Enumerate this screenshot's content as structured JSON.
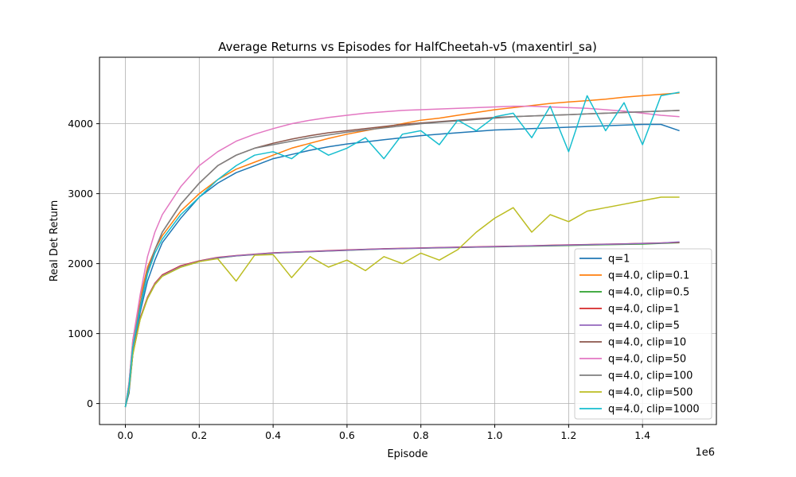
{
  "chart_data": {
    "type": "line",
    "title": "Average Returns vs Episodes for HalfCheetah-v5 (maxentirl_sa)",
    "xlabel": "Episode",
    "ylabel": "Real Det Return",
    "x_offset_label": "1e6",
    "xlim": [
      -0.07,
      1.6
    ],
    "ylim": [
      -300,
      4950
    ],
    "x_ticks": [
      0,
      0.2,
      0.4,
      0.6,
      0.8,
      1.0,
      1.2,
      1.4
    ],
    "x_tick_labels": [
      "0.0",
      "0.2",
      "0.4",
      "0.6",
      "0.8",
      "1.0",
      "1.2",
      "1.4"
    ],
    "y_ticks": [
      0,
      1000,
      2000,
      3000,
      4000
    ],
    "y_tick_labels": [
      "0",
      "1000",
      "2000",
      "3000",
      "4000"
    ],
    "grid": true,
    "legend_position": "lower-right",
    "x": [
      0,
      0.01,
      0.02,
      0.04,
      0.06,
      0.08,
      0.1,
      0.15,
      0.2,
      0.25,
      0.3,
      0.35,
      0.4,
      0.45,
      0.5,
      0.55,
      0.6,
      0.65,
      0.7,
      0.75,
      0.8,
      0.85,
      0.9,
      0.95,
      1.0,
      1.05,
      1.1,
      1.15,
      1.2,
      1.25,
      1.3,
      1.35,
      1.4,
      1.45,
      1.5
    ],
    "series": [
      {
        "name": "q=1",
        "color": "#1f77b4",
        "values": [
          -50,
          150,
          700,
          1300,
          1750,
          2050,
          2300,
          2650,
          2950,
          3150,
          3300,
          3400,
          3500,
          3560,
          3620,
          3670,
          3710,
          3740,
          3770,
          3800,
          3830,
          3850,
          3870,
          3890,
          3910,
          3920,
          3930,
          3940,
          3950,
          3960,
          3970,
          3980,
          3990,
          3990,
          3900
        ]
      },
      {
        "name": "q=4.0, clip=0.1",
        "color": "#ff7f0e",
        "values": [
          -50,
          300,
          900,
          1500,
          1950,
          2200,
          2400,
          2750,
          3000,
          3200,
          3350,
          3450,
          3550,
          3650,
          3720,
          3790,
          3850,
          3900,
          3950,
          4000,
          4050,
          4080,
          4120,
          4160,
          4200,
          4230,
          4260,
          4290,
          4310,
          4330,
          4350,
          4380,
          4400,
          4420,
          4440
        ]
      },
      {
        "name": "q=4.0, clip=0.5",
        "color": "#2ca02c",
        "values": [
          -50,
          200,
          700,
          1200,
          1500,
          1700,
          1820,
          1950,
          2030,
          2080,
          2110,
          2130,
          2150,
          2160,
          2170,
          2180,
          2190,
          2200,
          2210,
          2215,
          2220,
          2225,
          2230,
          2235,
          2240,
          2245,
          2250,
          2255,
          2260,
          2265,
          2270,
          2275,
          2280,
          2290,
          2300
        ]
      },
      {
        "name": "q=4.0, clip=1",
        "color": "#d62728",
        "values": [
          -50,
          200,
          720,
          1220,
          1520,
          1720,
          1840,
          1970,
          2040,
          2090,
          2115,
          2135,
          2155,
          2165,
          2175,
          2185,
          2195,
          2205,
          2212,
          2218,
          2224,
          2230,
          2235,
          2240,
          2245,
          2250,
          2256,
          2262,
          2268,
          2273,
          2278,
          2283,
          2290,
          2295,
          2305
        ]
      },
      {
        "name": "q=4.0, clip=5",
        "color": "#9467bd",
        "values": [
          -50,
          200,
          710,
          1210,
          1510,
          1710,
          1830,
          1960,
          2035,
          2085,
          2112,
          2132,
          2152,
          2162,
          2172,
          2182,
          2192,
          2202,
          2210,
          2216,
          2222,
          2228,
          2233,
          2238,
          2243,
          2248,
          2254,
          2260,
          2266,
          2271,
          2276,
          2281,
          2288,
          2293,
          2310
        ]
      },
      {
        "name": "q=4.0, clip=10",
        "color": "#8c564b",
        "values": [
          -50,
          250,
          800,
          1400,
          1900,
          2200,
          2450,
          2850,
          3150,
          3400,
          3550,
          3650,
          3720,
          3780,
          3830,
          3870,
          3900,
          3930,
          3960,
          3990,
          4010,
          4030,
          4050,
          4070,
          4090,
          4100,
          4110,
          4120,
          4130,
          4140,
          4150,
          4160,
          4170,
          4180,
          4190
        ]
      },
      {
        "name": "q=4.0, clip=50",
        "color": "#e377c2",
        "values": [
          -50,
          300,
          900,
          1550,
          2100,
          2450,
          2700,
          3100,
          3400,
          3600,
          3750,
          3850,
          3930,
          4000,
          4050,
          4090,
          4120,
          4150,
          4170,
          4190,
          4200,
          4210,
          4220,
          4230,
          4240,
          4250,
          4250,
          4240,
          4230,
          4220,
          4200,
          4180,
          4150,
          4120,
          4100
        ]
      },
      {
        "name": "q=4.0, clip=100",
        "color": "#7f7f7f",
        "values": [
          -50,
          250,
          800,
          1400,
          1900,
          2200,
          2450,
          2850,
          3150,
          3400,
          3550,
          3650,
          3700,
          3750,
          3800,
          3840,
          3880,
          3910,
          3940,
          3970,
          4000,
          4020,
          4040,
          4060,
          4080,
          4100,
          4110,
          4120,
          4130,
          4140,
          4150,
          4160,
          4170,
          4180,
          4190
        ]
      },
      {
        "name": "q=4.0, clip=500",
        "color": "#bcbd22",
        "values": [
          -50,
          200,
          700,
          1200,
          1500,
          1700,
          1820,
          1950,
          2030,
          2070,
          1750,
          2120,
          2130,
          1800,
          2100,
          1950,
          2050,
          1900,
          2100,
          2000,
          2150,
          2050,
          2200,
          2450,
          2650,
          2800,
          2450,
          2700,
          2600,
          2750,
          2800,
          2850,
          2900,
          2950,
          2950
        ]
      },
      {
        "name": "q=4.0, clip=1000",
        "color": "#17becf",
        "values": [
          -50,
          250,
          800,
          1350,
          1850,
          2150,
          2350,
          2700,
          2950,
          3200,
          3400,
          3550,
          3600,
          3500,
          3700,
          3550,
          3650,
          3800,
          3500,
          3850,
          3900,
          3700,
          4050,
          3900,
          4100,
          4150,
          3800,
          4250,
          3600,
          4400,
          3900,
          4300,
          3700,
          4400,
          4450
        ]
      }
    ]
  }
}
